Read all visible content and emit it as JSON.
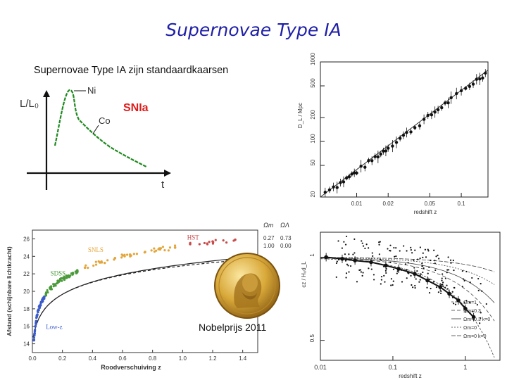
{
  "slide": {
    "title": "Supernovae Type IA",
    "subtitle": "Supernovae Type IA zijn standaardkaarsen",
    "nobel_label": "Nobelprijs 2011"
  },
  "lightcurve": {
    "y_label": "L/L₀",
    "x_label": "t",
    "curve_label": "SNIa",
    "peak_label": "Ni",
    "tail_label": "Co",
    "colors": {
      "curve": "#1f8a1f",
      "curve_label": "#e01b1b"
    }
  },
  "chart_data": [
    {
      "type": "scatter",
      "title": "",
      "xlabel": "redshift z",
      "ylabel": "D_L / Mpc",
      "x_scale": "log",
      "y_scale": "log",
      "xlim": [
        0.0045,
        0.18
      ],
      "ylim": [
        20,
        1000
      ],
      "x_ticks": [
        "0.01",
        "0.02",
        "0.05",
        "0.1"
      ],
      "y_ticks": [
        "20",
        "50",
        "100",
        "200",
        "500",
        "1000"
      ],
      "fit_line": {
        "x": [
          0.0045,
          0.18
        ],
        "y": [
          20,
          790
        ]
      },
      "points": [
        [
          0.005,
          23
        ],
        [
          0.0055,
          26
        ],
        [
          0.006,
          27
        ],
        [
          0.0065,
          28
        ],
        [
          0.007,
          30
        ],
        [
          0.0075,
          32
        ],
        [
          0.008,
          34
        ],
        [
          0.0085,
          36
        ],
        [
          0.009,
          38
        ],
        [
          0.0095,
          40
        ],
        [
          0.01,
          42
        ],
        [
          0.011,
          46
        ],
        [
          0.012,
          50
        ],
        [
          0.013,
          54
        ],
        [
          0.014,
          58
        ],
        [
          0.015,
          63
        ],
        [
          0.016,
          67
        ],
        [
          0.017,
          70
        ],
        [
          0.018,
          75
        ],
        [
          0.019,
          80
        ],
        [
          0.02,
          84
        ],
        [
          0.022,
          93
        ],
        [
          0.024,
          101
        ],
        [
          0.026,
          110
        ],
        [
          0.028,
          118
        ],
        [
          0.03,
          125
        ],
        [
          0.033,
          139
        ],
        [
          0.036,
          150
        ],
        [
          0.04,
          168
        ],
        [
          0.044,
          185
        ],
        [
          0.048,
          200
        ],
        [
          0.052,
          218
        ],
        [
          0.056,
          236
        ],
        [
          0.06,
          252
        ],
        [
          0.065,
          275
        ],
        [
          0.07,
          295
        ],
        [
          0.075,
          316
        ],
        [
          0.08,
          338
        ],
        [
          0.09,
          378
        ],
        [
          0.1,
          420
        ],
        [
          0.11,
          462
        ],
        [
          0.12,
          505
        ],
        [
          0.13,
          548
        ],
        [
          0.14,
          590
        ],
        [
          0.15,
          632
        ],
        [
          0.16,
          675
        ],
        [
          0.17,
          715
        ]
      ]
    },
    {
      "type": "scatter",
      "title": "",
      "xlabel": "Roodverschuiving z",
      "ylabel": "Afstand (schijnbare lichtkracht)",
      "xlim": [
        0,
        1.5
      ],
      "ylim": [
        13,
        27
      ],
      "x_ticks": [
        "0.0",
        "0.2",
        "0.4",
        "0.6",
        "0.8",
        "1.0",
        "1.2",
        "1.4"
      ],
      "y_ticks": [
        "14",
        "16",
        "18",
        "20",
        "22",
        "24",
        "26"
      ],
      "legend_header": [
        "Ωm",
        "ΩΛ"
      ],
      "models": [
        {
          "values": [
            "0.27",
            "0.73"
          ],
          "style": "solid"
        },
        {
          "values": [
            "1.00",
            "0.00"
          ],
          "style": "dashed"
        }
      ],
      "series": [
        {
          "name": "Low-z",
          "color": "#3a5bc9",
          "x": [
            0.01,
            0.015,
            0.02,
            0.025,
            0.03,
            0.04,
            0.05,
            0.06,
            0.07,
            0.08
          ],
          "y": [
            14.4,
            15.2,
            16.0,
            16.6,
            17.2,
            17.9,
            18.4,
            18.8,
            19.1,
            19.4
          ]
        },
        {
          "name": "SDSS",
          "color": "#4a9a3a",
          "x": [
            0.09,
            0.12,
            0.15,
            0.18,
            0.21,
            0.24,
            0.27,
            0.3
          ],
          "y": [
            19.7,
            20.3,
            20.8,
            21.2,
            21.5,
            21.8,
            22.1,
            22.3
          ]
        },
        {
          "name": "SNLS",
          "color": "#e3a53a",
          "x": [
            0.35,
            0.45,
            0.55,
            0.65,
            0.75,
            0.85,
            0.95
          ],
          "y": [
            22.7,
            23.3,
            23.8,
            24.2,
            24.5,
            24.8,
            25.0
          ]
        },
        {
          "name": "HST",
          "color": "#c94a4a",
          "x": [
            1.05,
            1.2,
            1.35
          ],
          "y": [
            25.4,
            25.7,
            25.9
          ]
        }
      ]
    },
    {
      "type": "scatter",
      "title": "",
      "xlabel": "redshift z",
      "ylabel": "cz / H₀d_L",
      "x_scale": "log",
      "xlim": [
        0.01,
        3
      ],
      "ylim": [
        0.38,
        1.15
      ],
      "x_ticks": [
        "0.01",
        "0.1",
        "1"
      ],
      "y_ticks": [
        "0.5",
        "1"
      ],
      "legend": [
        "Ωm=1",
        "Ωm=0.3",
        "Ωm=0.3 k=0",
        "Ωm=0",
        "Ωm=0 k=0"
      ],
      "binned": {
        "x": [
          0.012,
          0.02,
          0.03,
          0.05,
          0.08,
          0.12,
          0.2,
          0.3,
          0.45,
          0.6,
          0.8,
          1.0,
          1.3
        ],
        "y": [
          1.0,
          0.99,
          0.98,
          0.97,
          0.95,
          0.93,
          0.9,
          0.86,
          0.82,
          0.78,
          0.74,
          0.69,
          0.64
        ]
      }
    }
  ]
}
